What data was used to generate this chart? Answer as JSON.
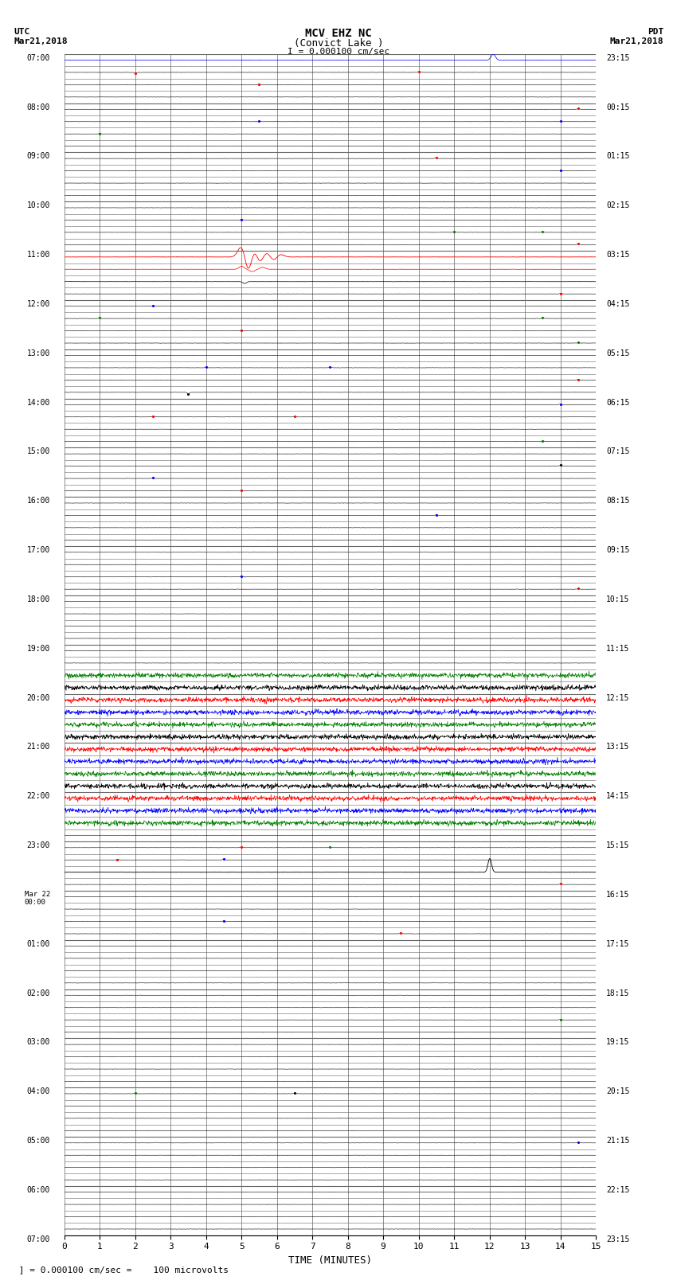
{
  "title_line1": "MCV EHZ NC",
  "title_line2": "(Convict Lake )",
  "scale_label": "I = 0.000100 cm/sec",
  "utc_label": "UTC\nMar21,2018",
  "pdt_label": "PDT\nMar21,2018",
  "xlabel": "TIME (MINUTES)",
  "footnote": " ] = 0.000100 cm/sec =    100 microvolts",
  "xlim": [
    0,
    15
  ],
  "background_color": "#ffffff",
  "grid_color": "#888888",
  "num_rows": 52
}
